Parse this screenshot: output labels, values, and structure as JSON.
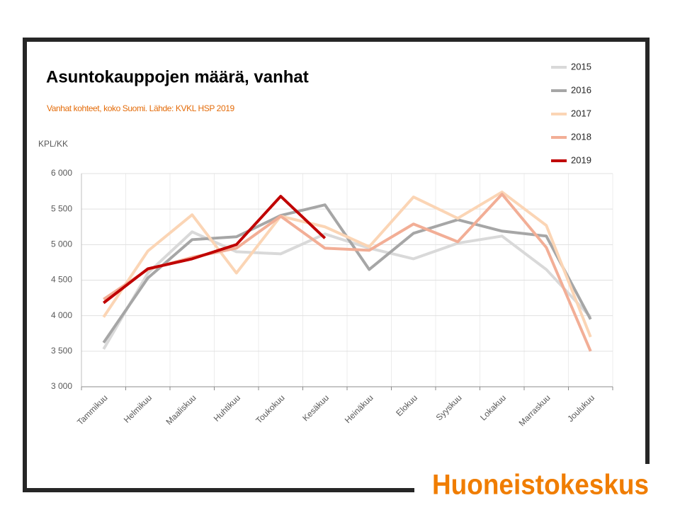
{
  "chart_data": {
    "type": "line",
    "title": "Asuntokauppojen määrä, vanhat",
    "subtitle": "Vanhat kohteet, koko Suomi. Lähde: KVKL HSP 2019",
    "y_label": "KPL/KK",
    "categories": [
      "Tammikuu",
      "Helmikuu",
      "Maaliskuu",
      "Huhtikuu",
      "Toukokuu",
      "Kesäkuu",
      "Heinäkuu",
      "Elokuu",
      "Syyskuu",
      "Lokakuu",
      "Marraskuu",
      "Joulukuu"
    ],
    "series": [
      {
        "name": "2015",
        "color": "#d9d9d9",
        "values": [
          3530,
          4600,
          5180,
          4900,
          4870,
          5150,
          4950,
          4800,
          5020,
          5120,
          4650,
          3980
        ]
      },
      {
        "name": "2016",
        "color": "#a6a6a6",
        "values": [
          3620,
          4530,
          5070,
          5110,
          5410,
          5560,
          4650,
          5160,
          5350,
          5190,
          5120,
          3950
        ]
      },
      {
        "name": "2017",
        "color": "#fbd5b5",
        "values": [
          3980,
          4910,
          5420,
          4600,
          5400,
          5250,
          4970,
          5670,
          5370,
          5740,
          5270,
          3700
        ]
      },
      {
        "name": "2018",
        "color": "#f2ae96",
        "values": [
          4230,
          4650,
          4820,
          4950,
          5400,
          4950,
          4920,
          5290,
          5040,
          5710,
          4960,
          3500
        ]
      },
      {
        "name": "2019",
        "color": "#c00000",
        "values": [
          4180,
          4660,
          4800,
          5000,
          5680,
          5090,
          null,
          null,
          null,
          null,
          null,
          null
        ]
      }
    ],
    "ylim": [
      3000,
      6000
    ],
    "yticks": [
      {
        "value": 3000,
        "label": "3 000"
      },
      {
        "value": 3500,
        "label": "3 500"
      },
      {
        "value": 4000,
        "label": "4 000"
      },
      {
        "value": 4500,
        "label": "4 500"
      },
      {
        "value": 5000,
        "label": "5 000"
      },
      {
        "value": 5500,
        "label": "5 500"
      },
      {
        "value": 6000,
        "label": "6 000"
      }
    ],
    "grid": true,
    "legend": "top-right"
  },
  "logo": "Huoneistokeskus"
}
